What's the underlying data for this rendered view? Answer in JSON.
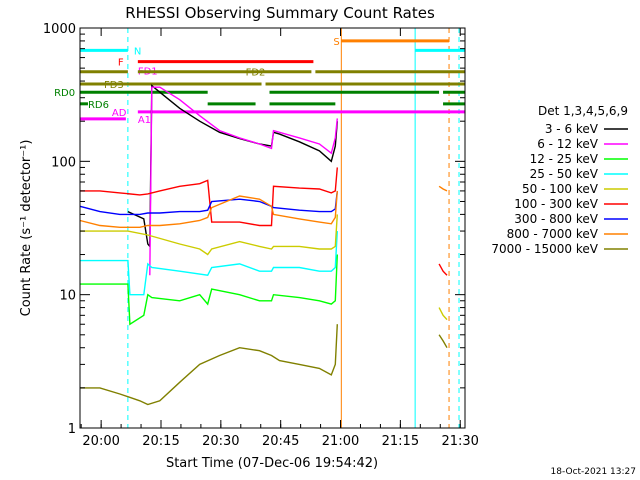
{
  "chart_data": {
    "type": "line",
    "title": "RHESSI Observing Summary Count Rates",
    "xlabel": "Start Time (07-Dec-06 19:54:42)",
    "ylabel": "Count Rate (s⁻¹ detector⁻¹)",
    "x_unit": "minutes after 19:54:42",
    "xlim": [
      0,
      96.5
    ],
    "ylim": [
      1,
      1000
    ],
    "yscale": "log",
    "x_ticks": [
      {
        "label": "20:00",
        "value": 5.3
      },
      {
        "label": "20:15",
        "value": 20.3
      },
      {
        "label": "20:30",
        "value": 35.3
      },
      {
        "label": "20:45",
        "value": 50.3
      },
      {
        "label": "21:00",
        "value": 65.3
      },
      {
        "label": "21:15",
        "value": 80.3
      },
      {
        "label": "21:30",
        "value": 95.3
      }
    ],
    "y_ticks": [
      {
        "label": "1",
        "value": 1
      },
      {
        "label": "10",
        "value": 10
      },
      {
        "label": "100",
        "value": 100
      },
      {
        "label": "1000",
        "value": 1000
      }
    ],
    "legend_title": "Det 1,3,4,5,6,9",
    "legend_position": "right",
    "series": [
      {
        "name": "3 - 6 keV",
        "color": "#000000",
        "points": [
          [
            12,
            42
          ],
          [
            16,
            37
          ],
          [
            17,
            24
          ],
          [
            17.5,
            23
          ],
          [
            18,
            370
          ],
          [
            20,
            330
          ],
          [
            25,
            250
          ],
          [
            30,
            200
          ],
          [
            35,
            165
          ],
          [
            40,
            148
          ],
          [
            45,
            135
          ],
          [
            48,
            130
          ],
          [
            48.5,
            165
          ],
          [
            50,
            160
          ],
          [
            55,
            140
          ],
          [
            60,
            120
          ],
          [
            63,
            100
          ],
          [
            64,
            130
          ],
          [
            64.5,
            200
          ]
        ]
      },
      {
        "name": "6 - 12 keV",
        "color": "#ff00ff",
        "points": [
          [
            17.5,
            14
          ],
          [
            18,
            360
          ],
          [
            20,
            360
          ],
          [
            25,
            290
          ],
          [
            30,
            220
          ],
          [
            35,
            170
          ],
          [
            40,
            150
          ],
          [
            45,
            135
          ],
          [
            48,
            125
          ],
          [
            48.5,
            170
          ],
          [
            55,
            150
          ],
          [
            60,
            135
          ],
          [
            63,
            115
          ],
          [
            64,
            150
          ],
          [
            64.5,
            210
          ]
        ]
      },
      {
        "name": "12 - 25 keV",
        "color": "#00ff00",
        "points": [
          [
            0,
            12
          ],
          [
            12,
            12
          ],
          [
            12.5,
            6
          ],
          [
            16,
            7
          ],
          [
            17,
            10
          ],
          [
            18,
            9.5
          ],
          [
            25,
            9
          ],
          [
            30,
            10
          ],
          [
            32,
            8.5
          ],
          [
            33,
            11
          ],
          [
            40,
            10
          ],
          [
            45,
            9
          ],
          [
            48,
            9
          ],
          [
            48.5,
            10
          ],
          [
            55,
            9.5
          ],
          [
            60,
            9
          ],
          [
            63,
            8.5
          ],
          [
            64,
            9
          ],
          [
            64.5,
            20
          ]
        ]
      },
      {
        "name": "25 - 50 keV",
        "color": "#00ffff",
        "points": [
          [
            0,
            18
          ],
          [
            12,
            18
          ],
          [
            12.5,
            10
          ],
          [
            16,
            10
          ],
          [
            17,
            17
          ],
          [
            18,
            16
          ],
          [
            25,
            15
          ],
          [
            32,
            14
          ],
          [
            33,
            16
          ],
          [
            40,
            17
          ],
          [
            45,
            15
          ],
          [
            48,
            15
          ],
          [
            48.5,
            16
          ],
          [
            55,
            16
          ],
          [
            60,
            15
          ],
          [
            63,
            15
          ],
          [
            64,
            16
          ],
          [
            64.5,
            30
          ]
        ]
      },
      {
        "name": "50 - 100 keV",
        "color": "#cccc00",
        "points": [
          [
            0,
            30
          ],
          [
            12,
            30
          ],
          [
            17,
            28
          ],
          [
            25,
            24
          ],
          [
            30,
            22
          ],
          [
            32,
            20
          ],
          [
            33,
            22
          ],
          [
            40,
            25
          ],
          [
            45,
            23
          ],
          [
            48,
            22
          ],
          [
            48.5,
            23
          ],
          [
            55,
            23
          ],
          [
            60,
            22
          ],
          [
            63,
            22
          ],
          [
            64,
            23
          ],
          [
            64.5,
            40
          ]
        ]
      },
      {
        "name": "100 - 300 keV",
        "color": "#ff0000",
        "points": [
          [
            0,
            60
          ],
          [
            5,
            60
          ],
          [
            10,
            58
          ],
          [
            15,
            56
          ],
          [
            17,
            57
          ],
          [
            20,
            60
          ],
          [
            25,
            65
          ],
          [
            30,
            68
          ],
          [
            32,
            72
          ],
          [
            33,
            35
          ],
          [
            40,
            35
          ],
          [
            45,
            33
          ],
          [
            48,
            33
          ],
          [
            48.5,
            65
          ],
          [
            55,
            63
          ],
          [
            60,
            62
          ],
          [
            63,
            58
          ],
          [
            64,
            60
          ],
          [
            64.5,
            90
          ]
        ]
      },
      {
        "name": "300 - 800 keV",
        "color": "#0000ff",
        "points": [
          [
            0,
            46
          ],
          [
            5,
            42
          ],
          [
            10,
            40
          ],
          [
            15,
            40
          ],
          [
            17,
            41
          ],
          [
            20,
            41
          ],
          [
            25,
            42
          ],
          [
            30,
            42
          ],
          [
            32,
            43
          ],
          [
            33,
            50
          ],
          [
            40,
            52
          ],
          [
            45,
            50
          ],
          [
            48,
            46
          ],
          [
            48.5,
            45
          ],
          [
            55,
            43
          ],
          [
            60,
            42
          ],
          [
            63,
            42
          ],
          [
            64,
            44
          ],
          [
            64.5,
            60
          ]
        ]
      },
      {
        "name": "800 - 7000 keV",
        "color": "#ff8000",
        "points": [
          [
            0,
            36
          ],
          [
            5,
            33
          ],
          [
            10,
            32
          ],
          [
            15,
            32
          ],
          [
            17,
            33
          ],
          [
            20,
            33
          ],
          [
            25,
            34
          ],
          [
            30,
            36
          ],
          [
            32,
            38
          ],
          [
            33,
            45
          ],
          [
            40,
            55
          ],
          [
            45,
            52
          ],
          [
            48,
            46
          ],
          [
            48.5,
            40
          ],
          [
            55,
            37
          ],
          [
            60,
            35
          ],
          [
            63,
            34
          ],
          [
            64,
            38
          ],
          [
            64.5,
            60
          ]
        ]
      },
      {
        "name": "7000 - 15000 keV",
        "color": "#808000",
        "points": [
          [
            0,
            2
          ],
          [
            5,
            2
          ],
          [
            10,
            1.8
          ],
          [
            15,
            1.6
          ],
          [
            17,
            1.5
          ],
          [
            20,
            1.6
          ],
          [
            25,
            2.2
          ],
          [
            30,
            3
          ],
          [
            35,
            3.5
          ],
          [
            40,
            4
          ],
          [
            45,
            3.8
          ],
          [
            48,
            3.5
          ],
          [
            50,
            3.2
          ],
          [
            55,
            3
          ],
          [
            60,
            2.8
          ],
          [
            63,
            2.5
          ],
          [
            64,
            3
          ],
          [
            64.5,
            6
          ]
        ]
      }
    ],
    "late_series": [
      {
        "name": "800 - 7000 keV",
        "color": "#ff8000",
        "points": [
          [
            90,
            65
          ],
          [
            91,
            62
          ],
          [
            92,
            60
          ]
        ]
      },
      {
        "name": "100 - 300 keV",
        "color": "#ff0000",
        "points": [
          [
            90,
            17
          ],
          [
            91,
            15
          ],
          [
            92,
            14
          ]
        ]
      },
      {
        "name": "50 - 100 keV",
        "color": "#cccc00",
        "points": [
          [
            90,
            8
          ],
          [
            91,
            7
          ],
          [
            92,
            6.5
          ]
        ]
      },
      {
        "name": "7000 - 15000 keV",
        "color": "#808000",
        "points": [
          [
            90,
            5
          ],
          [
            91,
            4.5
          ],
          [
            92,
            4
          ]
        ]
      }
    ],
    "vertical_lines": [
      {
        "x": 0,
        "color": "#00ffff",
        "style": "solid"
      },
      {
        "x": 12.0,
        "color": "#00ffff",
        "style": "dashed"
      },
      {
        "x": 65.5,
        "color": "#ff8000",
        "style": "solid"
      },
      {
        "x": 84.0,
        "color": "#00ffff",
        "style": "solid"
      },
      {
        "x": 92.5,
        "color": "#ff8000",
        "style": "dashed"
      },
      {
        "x": 95.0,
        "color": "#00ffff",
        "style": "dashed"
      }
    ],
    "status_bars": [
      {
        "label": "N",
        "color": "#00ffff",
        "level": 680,
        "segments": [
          [
            0,
            12.0
          ],
          [
            84.0,
            96.5
          ]
        ],
        "label_x": 13.5
      },
      {
        "label": "S",
        "color": "#ff8000",
        "level": 800,
        "segments": [
          [
            65.5,
            92.5
          ]
        ],
        "label_x": 63.5
      },
      {
        "label": "F",
        "color": "#ff0000",
        "level": 560,
        "segments": [
          [
            14.5,
            58.5
          ]
        ],
        "label_x": 9.5
      },
      {
        "label": "FD1",
        "color": "#ff00ff",
        "level": 480,
        "segments": [],
        "label_x": 14.5
      },
      {
        "label": "FD2",
        "color": "#808000",
        "level": 470,
        "segments": [
          [
            0,
            12.0
          ],
          [
            14.5,
            58
          ],
          [
            59,
            96.5
          ]
        ],
        "label_x": 41.5
      },
      {
        "label": "FD3",
        "color": "#808000",
        "level": 380,
        "segments": [
          [
            0,
            45.5
          ],
          [
            46.5,
            96.5
          ]
        ],
        "label_x": 6
      },
      {
        "label": "RD0",
        "color": "#008000",
        "level": 330,
        "segments": [
          [
            0,
            32
          ],
          [
            47.5,
            90
          ],
          [
            91,
            96.5
          ]
        ],
        "label_x": -6.5
      },
      {
        "label": "RD6",
        "color": "#008000",
        "level": 270,
        "segments": [
          [
            0,
            2
          ],
          [
            32,
            44
          ],
          [
            47.5,
            64
          ],
          [
            91,
            96.5
          ]
        ],
        "label_x": 2
      },
      {
        "label": "AD",
        "color": "#ff00ff",
        "level": 235,
        "segments": [
          [
            14.5,
            96.5
          ]
        ],
        "label_x": 8
      },
      {
        "label": "A1",
        "color": "#ff00ff",
        "level": 208,
        "segments": [
          [
            0,
            11.5
          ]
        ],
        "label_x": 14.5
      }
    ]
  },
  "footer": {
    "date_stamp": "18-Oct-2021 13:27"
  }
}
